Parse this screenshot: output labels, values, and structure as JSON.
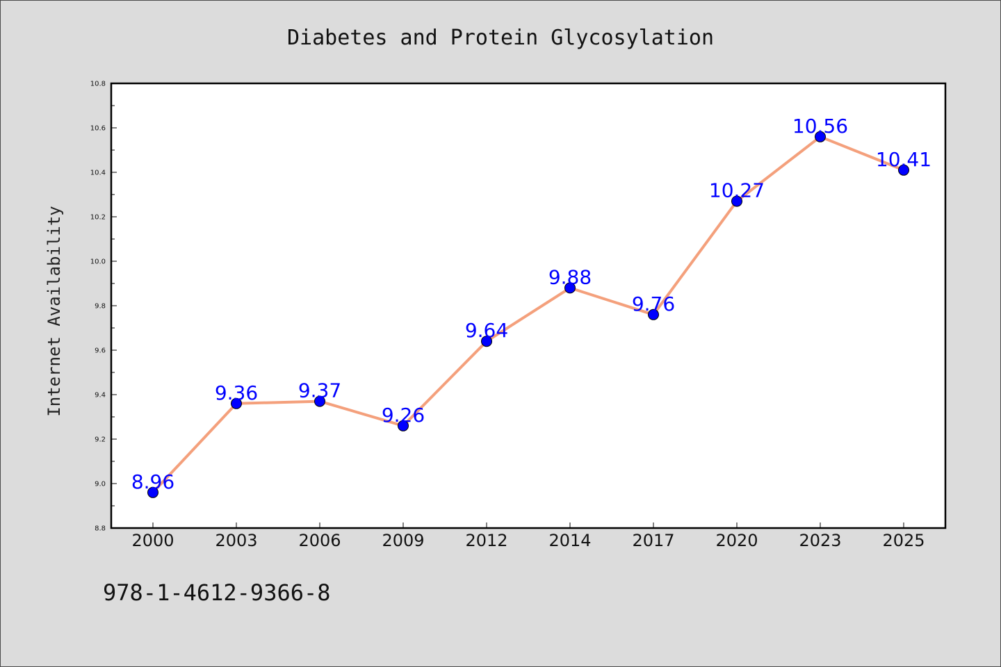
{
  "chart_data": {
    "type": "line",
    "title": "Diabetes and Protein Glycosylation",
    "xlabel": "",
    "ylabel": "Internet Availability",
    "categories": [
      "2000",
      "2003",
      "2006",
      "2009",
      "2012",
      "2014",
      "2017",
      "2020",
      "2023",
      "2025"
    ],
    "values": [
      8.96,
      9.36,
      9.37,
      9.26,
      9.64,
      9.88,
      9.76,
      10.27,
      10.56,
      10.41
    ],
    "ylim": [
      8.8,
      10.8
    ],
    "yticks": [
      "8.8",
      "9.0",
      "9.2",
      "9.4",
      "9.6",
      "9.8",
      "10.0",
      "10.2",
      "10.4",
      "10.6",
      "10.8"
    ],
    "data_labels": true,
    "grid": false,
    "colors": {
      "line": "#f4a07c",
      "marker": "#0000ff",
      "label": "#0000ff"
    }
  },
  "footer": {
    "code": "978-1-4612-9366-8"
  }
}
